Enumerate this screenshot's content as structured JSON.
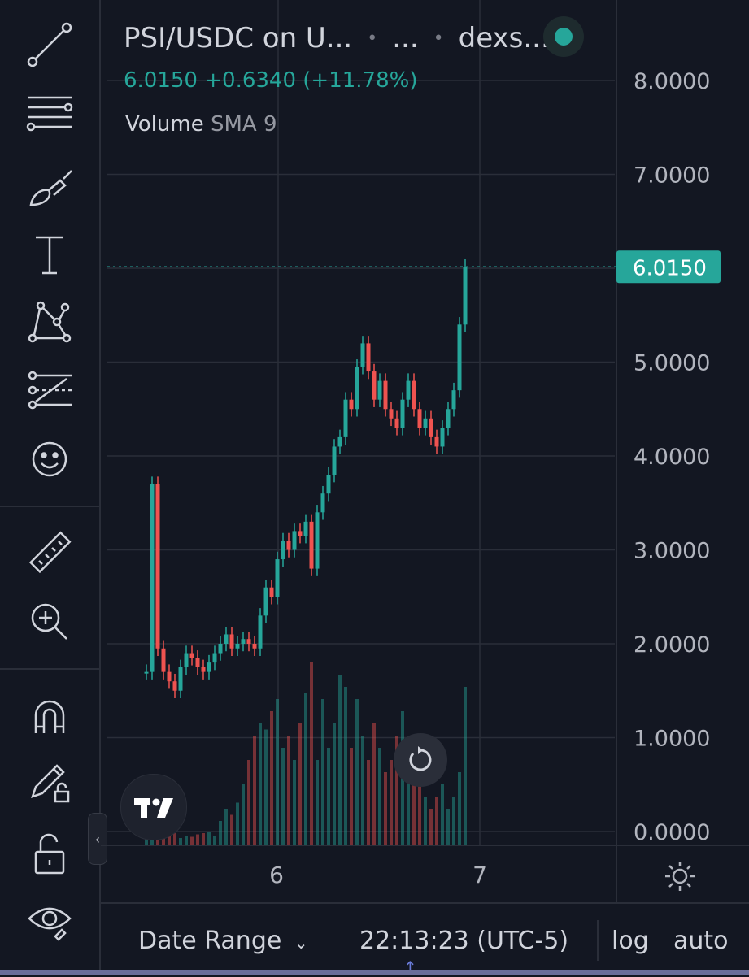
{
  "header": {
    "symbol": "PSI/USDC on U...",
    "interval": "...",
    "exchange": "dexs...",
    "status_color": "#26a69a"
  },
  "ohlc": {
    "last": "6.0150",
    "change": "+0.6340",
    "change_pct": "(+11.78%)",
    "color": "#26a69a"
  },
  "volume_indicator": {
    "name": "Volume",
    "param": "SMA 9"
  },
  "toolbar": {
    "tools": [
      "trendline-icon",
      "fib-retracement-icon",
      "brush-icon",
      "text-icon",
      "pattern-icon",
      "prediction-icon",
      "emoji-icon",
      "ruler-icon",
      "zoom-in-icon",
      "magnet-icon",
      "lock-drawings-icon",
      "unlock-icon",
      "eye-icon"
    ]
  },
  "price_axis": {
    "labels": [
      "8.0000",
      "7.0000",
      "6.0000",
      "5.0000",
      "4.0000",
      "3.0000",
      "2.0000",
      "1.0000",
      "0.0000"
    ],
    "current_label": "6.0150",
    "current_color": "#26a69a"
  },
  "time_axis": {
    "labels": [
      "6",
      "7"
    ]
  },
  "bottom_bar": {
    "date_range": "Date Range",
    "clock": "22:13:23 (UTC-5)",
    "log": "log",
    "auto": "auto"
  },
  "colors": {
    "up": "#26a69a",
    "down": "#ef5350",
    "grid": "#2a2e39",
    "background": "#131722"
  },
  "chart_data": {
    "type": "candlestick",
    "symbol": "PSI/USDC",
    "last_price": 6.015,
    "ylim": [
      0,
      8.3
    ],
    "x_ticks": [
      "6",
      "7"
    ],
    "series": [
      {
        "name": "price",
        "values": [
          1.7,
          3.7,
          1.95,
          1.7,
          1.6,
          1.5,
          1.75,
          1.9,
          1.85,
          1.75,
          1.7,
          1.8,
          1.9,
          2.0,
          2.1,
          1.95,
          2.0,
          2.05,
          2.0,
          1.95,
          2.3,
          2.6,
          2.5,
          2.9,
          3.1,
          3.0,
          3.2,
          3.15,
          3.3,
          2.8,
          3.4,
          3.6,
          3.8,
          4.1,
          4.2,
          4.6,
          4.5,
          4.95,
          5.2,
          4.9,
          4.6,
          4.8,
          4.5,
          4.4,
          4.3,
          4.6,
          4.8,
          4.5,
          4.3,
          4.4,
          4.2,
          4.1,
          4.3,
          4.5,
          4.7,
          5.4,
          6.015
        ]
      },
      {
        "name": "volume",
        "values": [
          0.1,
          0.05,
          0.08,
          0.12,
          0.09,
          0.1,
          0.06,
          0.08,
          0.07,
          0.09,
          0.1,
          0.11,
          0.08,
          0.2,
          0.3,
          0.25,
          0.35,
          0.5,
          0.7,
          0.9,
          1.0,
          0.95,
          1.1,
          1.2,
          0.8,
          0.9,
          0.7,
          1.0,
          1.25,
          1.5,
          0.7,
          1.2,
          0.8,
          1.0,
          1.4,
          1.3,
          0.8,
          1.2,
          0.9,
          0.7,
          1.0,
          0.8,
          0.6,
          0.7,
          0.9,
          1.1,
          0.7,
          0.5,
          0.6,
          0.4,
          0.3,
          0.4,
          0.5,
          0.3,
          0.4,
          0.6,
          1.3
        ]
      }
    ]
  }
}
